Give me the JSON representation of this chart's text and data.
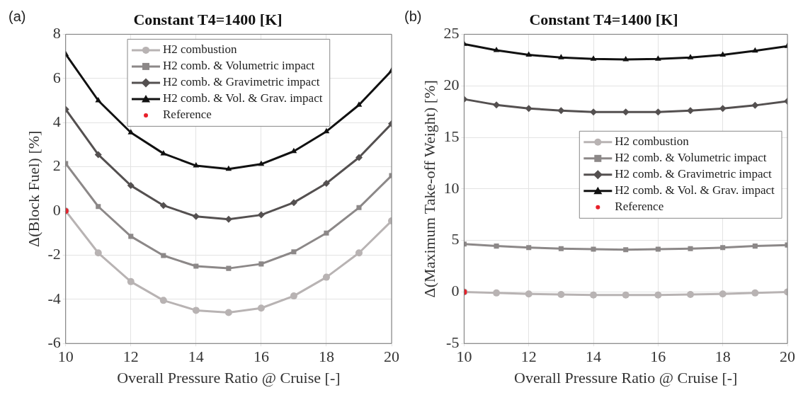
{
  "chart_data": [
    {
      "type": "line",
      "title": "Constant T4=1400 [K]",
      "xlabel": "Overall Pressure Ratio @ Cruise [-]",
      "ylabel": "Δ(Block Fuel) [%]",
      "annotations": [
        "(a)"
      ],
      "x": [
        10,
        11,
        12,
        13,
        14,
        15,
        16,
        17,
        18,
        19,
        20
      ],
      "xlim": [
        10,
        20
      ],
      "xticks": [
        10,
        12,
        14,
        16,
        18,
        20
      ],
      "ylim": [
        -6,
        8
      ],
      "yticks": [
        -6,
        -4,
        -2,
        0,
        2,
        4,
        6,
        8
      ],
      "grid": true,
      "legend": "top",
      "series": [
        {
          "name": "H2 combustion",
          "color": "#b8b3b3",
          "marker": "circle",
          "values": [
            0,
            -1.9,
            -3.2,
            -4.05,
            -4.5,
            -4.6,
            -4.4,
            -3.85,
            -3.0,
            -1.9,
            -0.45
          ]
        },
        {
          "name": "H2 comb. & Volumetric impact",
          "color": "#8c8888",
          "marker": "square",
          "values": [
            2.15,
            0.2,
            -1.15,
            -2.02,
            -2.5,
            -2.6,
            -2.4,
            -1.85,
            -1.0,
            0.15,
            1.6
          ]
        },
        {
          "name": "H2 comb. & Gravimetric impact",
          "color": "#545050",
          "marker": "diamond",
          "values": [
            4.6,
            2.55,
            1.15,
            0.25,
            -0.25,
            -0.38,
            -0.18,
            0.38,
            1.25,
            2.42,
            3.95
          ]
        },
        {
          "name": "H2 comb. & Vol. & Grav. impact",
          "color": "#111111",
          "marker": "triangle",
          "values": [
            7.1,
            5.0,
            3.55,
            2.6,
            2.05,
            1.9,
            2.12,
            2.7,
            3.6,
            4.8,
            6.35
          ]
        },
        {
          "name": "Reference",
          "type": "scatter",
          "color": "#e8202a",
          "marker": "circle",
          "x": [
            10
          ],
          "values": [
            0
          ]
        }
      ]
    },
    {
      "type": "line",
      "title": "Constant T4=1400 [K]",
      "xlabel": "Overall Pressure Ratio @ Cruise [-]",
      "ylabel": "Δ(Maximum Take-off Weight) [%]",
      "annotations": [
        "(b)"
      ],
      "x": [
        10,
        11,
        12,
        13,
        14,
        15,
        16,
        17,
        18,
        19,
        20
      ],
      "xlim": [
        10,
        20
      ],
      "xticks": [
        10,
        12,
        14,
        16,
        18,
        20
      ],
      "ylim": [
        -5,
        25
      ],
      "yticks": [
        -5,
        0,
        5,
        10,
        15,
        20,
        25
      ],
      "grid": true,
      "legend": "right",
      "series": [
        {
          "name": "H2 combustion",
          "color": "#b8b3b3",
          "marker": "circle",
          "values": [
            0,
            -0.1,
            -0.2,
            -0.25,
            -0.3,
            -0.3,
            -0.3,
            -0.25,
            -0.2,
            -0.1,
            0
          ]
        },
        {
          "name": "H2 comb. & Volumetric impact",
          "color": "#8c8888",
          "marker": "square",
          "values": [
            4.65,
            4.45,
            4.3,
            4.2,
            4.15,
            4.1,
            4.15,
            4.2,
            4.3,
            4.45,
            4.55
          ]
        },
        {
          "name": "H2 comb. & Gravimetric impact",
          "color": "#545050",
          "marker": "diamond",
          "values": [
            18.7,
            18.15,
            17.8,
            17.6,
            17.45,
            17.45,
            17.45,
            17.6,
            17.8,
            18.1,
            18.5
          ]
        },
        {
          "name": "H2 comb. & Vol. & Grav. impact",
          "color": "#111111",
          "marker": "triangle",
          "values": [
            24.05,
            23.45,
            23.0,
            22.75,
            22.6,
            22.55,
            22.6,
            22.75,
            23.0,
            23.4,
            23.85
          ]
        },
        {
          "name": "Reference",
          "type": "scatter",
          "color": "#e8202a",
          "marker": "circle",
          "x": [
            10
          ],
          "values": [
            0
          ]
        }
      ]
    }
  ]
}
